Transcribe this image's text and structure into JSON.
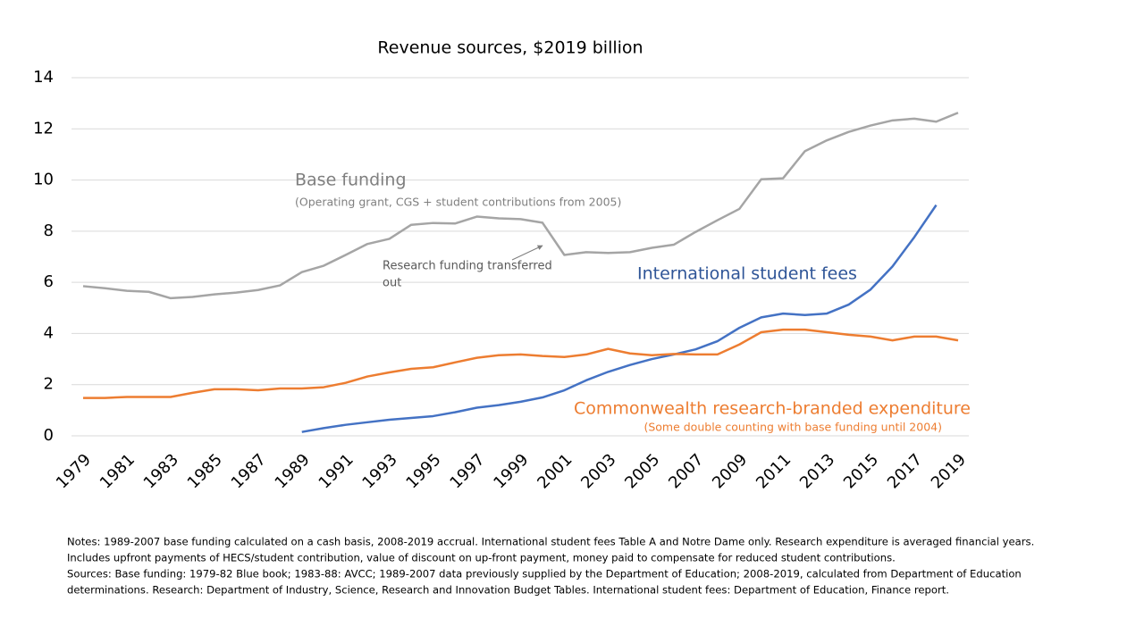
{
  "chart_data": {
    "type": "line",
    "title": "Revenue sources, $2019 billion",
    "x": [
      1979,
      1980,
      1981,
      1982,
      1983,
      1984,
      1985,
      1986,
      1987,
      1988,
      1989,
      1990,
      1991,
      1992,
      1993,
      1994,
      1995,
      1996,
      1997,
      1998,
      1999,
      2000,
      2001,
      2002,
      2003,
      2004,
      2005,
      2006,
      2007,
      2008,
      2009,
      2010,
      2011,
      2012,
      2013,
      2014,
      2015,
      2016,
      2017,
      2018,
      2019
    ],
    "series": [
      {
        "name": "Base funding",
        "note": "(Operating grant, CGS + student contributions  from 2005)",
        "color": "#a5a5a5",
        "values": [
          5.85,
          5.77,
          5.67,
          5.63,
          5.38,
          5.43,
          5.53,
          5.6,
          5.7,
          5.88,
          6.4,
          6.65,
          7.07,
          7.5,
          7.7,
          8.25,
          8.32,
          8.3,
          8.57,
          8.5,
          8.47,
          8.33,
          7.07,
          7.18,
          7.15,
          7.18,
          7.35,
          7.47,
          7.97,
          8.43,
          8.87,
          10.03,
          10.07,
          11.13,
          11.55,
          11.88,
          12.13,
          12.33,
          12.4,
          12.28,
          12.63
        ]
      },
      {
        "name": "International student fees",
        "color": "#4472c4",
        "values": [
          null,
          null,
          null,
          null,
          null,
          null,
          null,
          null,
          null,
          null,
          0.15,
          0.3,
          0.43,
          0.53,
          0.63,
          0.7,
          0.77,
          0.92,
          1.1,
          1.2,
          1.33,
          1.5,
          1.78,
          2.17,
          2.5,
          2.77,
          3.0,
          3.18,
          3.38,
          3.7,
          4.22,
          4.63,
          4.78,
          4.72,
          4.78,
          5.13,
          5.72,
          6.62,
          7.77,
          9.02,
          null
        ]
      },
      {
        "name": "Commonwealth research-branded expenditure",
        "note": "(Some double counting with base funding until 2004)",
        "color": "#ed7d31",
        "values": [
          1.48,
          1.48,
          1.52,
          1.52,
          1.52,
          1.68,
          1.82,
          1.82,
          1.78,
          1.85,
          1.85,
          1.9,
          2.07,
          2.32,
          2.48,
          2.62,
          2.68,
          2.87,
          3.05,
          3.15,
          3.18,
          3.12,
          3.08,
          3.18,
          3.4,
          3.22,
          3.15,
          3.2,
          3.18,
          3.18,
          3.57,
          4.05,
          4.15,
          4.15,
          4.05,
          3.95,
          3.88,
          3.73,
          3.88,
          3.88,
          3.73
        ]
      }
    ],
    "xlim": [
      1979,
      2019
    ],
    "xticks": [
      1979,
      1981,
      1983,
      1985,
      1987,
      1989,
      1991,
      1993,
      1995,
      1997,
      1999,
      2001,
      2003,
      2005,
      2007,
      2009,
      2011,
      2013,
      2015,
      2017,
      2019
    ],
    "ylim": [
      0,
      14
    ],
    "yticks": [
      0,
      2,
      4,
      6,
      8,
      10,
      12,
      14
    ],
    "grid": true,
    "annotation": [
      "Research funding transferred",
      "out"
    ],
    "notes": [
      "Notes: 1989-2007  base funding calculated on a cash basis, 2008-2019  accrual. International student fees Table A and Notre Dame only. Research expenditure is averaged financial years.",
      "Includes upfront payments of HECS/student contribution, value of discount on up-front payment, money paid to compensate for reduced student contributions.",
      "Sources: Base funding: 1979-82 Blue book; 1983-88:  AVCC; 1989-2007  data previously supplied by the Department of Education; 2008-2019,  calculated from Department of Education",
      "determinations.  Research: Department of Industry, Science, Research and Innovation Budget Tables. International student fees: Department of Education, Finance report."
    ]
  }
}
